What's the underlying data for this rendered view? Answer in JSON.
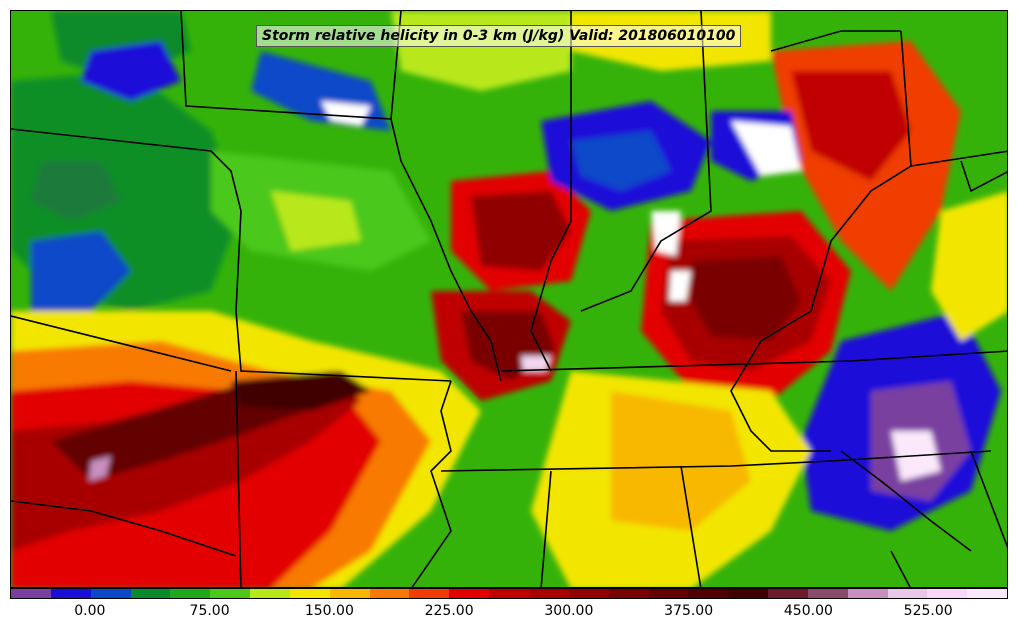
{
  "title": "Storm relative helicity in 0-3 km (J/kg) Valid: 201806010100",
  "colorbar": {
    "colors": [
      "#7a3fa0",
      "#1a0fd8",
      "#0a48c8",
      "#0a8a2a",
      "#1fa81a",
      "#4cc81a",
      "#b8e81a",
      "#f2e600",
      "#f8b800",
      "#f87a00",
      "#f03c00",
      "#e20000",
      "#c00000",
      "#a80000",
      "#900000",
      "#7a0000",
      "#640000",
      "#500000",
      "#400000",
      "#6a1a2a",
      "#8a4a6a",
      "#c890c0",
      "#e8c8e8",
      "#f8d8f8",
      "#fbe8fb"
    ],
    "tick_labels": [
      "0.00",
      "75.00",
      "150.00",
      "225.00",
      "300.00",
      "375.00",
      "450.00",
      "525.00"
    ],
    "tick_values": [
      0,
      75,
      150,
      225,
      300,
      375,
      450,
      525
    ],
    "range": [
      -50,
      575
    ]
  }
}
